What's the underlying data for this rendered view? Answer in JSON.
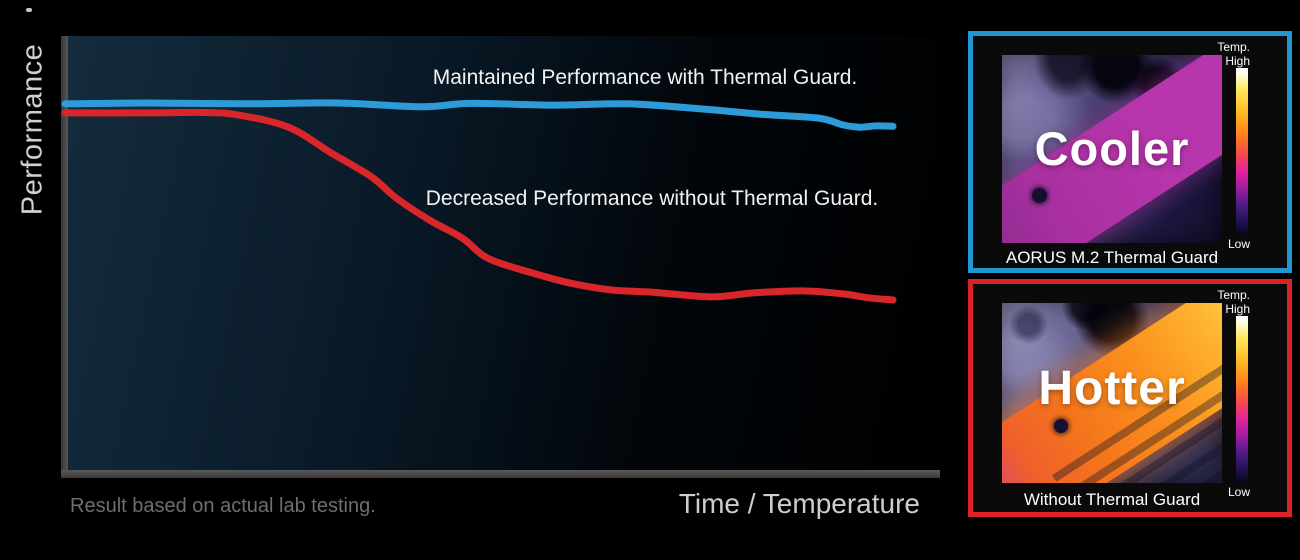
{
  "chart": {
    "ylabel": "Performance",
    "xlabel": "Time / Temperature",
    "footnote": "Result based on actual lab testing.",
    "maintained_label": "Maintained Performance with Thermal Guard.",
    "decreased_label": "Decreased Performance without Thermal Guard."
  },
  "chart_data": {
    "type": "line",
    "title": "",
    "xlabel": "Time / Temperature",
    "ylabel": "Performance",
    "x_axis": {
      "min": 0,
      "max": 100,
      "ticks": "none",
      "unit": "relative time / temperature (%)"
    },
    "y_axis": {
      "min": 0,
      "max": 100,
      "ticks": "none",
      "unit": "relative performance (%)"
    },
    "grid": false,
    "legend_position": "inline-annotations",
    "annotations": [
      "Maintained Performance with Thermal Guard.",
      "Decreased Performance without Thermal Guard."
    ],
    "footnote": "Result based on actual lab testing.",
    "series": [
      {
        "name": "Maintained Performance with Thermal Guard.",
        "color": "#2d9bd7",
        "x": [
          0,
          10,
          22,
          33,
          43,
          49,
          59,
          68,
          77,
          84,
          91,
          94,
          96,
          98,
          100
        ],
        "y": [
          84.3,
          84.5,
          84.3,
          84.5,
          83.6,
          84.4,
          84.0,
          84.3,
          83.1,
          81.9,
          81.0,
          79.4,
          78.9,
          79.2,
          79.1
        ]
      },
      {
        "name": "Decreased Performance without Thermal Guard.",
        "color": "#d8262b",
        "x": [
          0,
          10,
          17,
          21,
          27,
          32,
          37,
          40,
          44,
          48,
          51,
          56,
          61,
          66,
          71,
          78,
          83,
          89,
          94,
          97,
          100
        ],
        "y": [
          82.2,
          82.2,
          82.3,
          81.7,
          78.9,
          73.1,
          67.4,
          62.5,
          57.4,
          53.2,
          48.6,
          45.4,
          42.8,
          41.2,
          40.7,
          39.6,
          40.5,
          41.0,
          40.3,
          39.4,
          38.9
        ]
      }
    ]
  },
  "panels": {
    "cooler": {
      "title": "Cooler",
      "caption": "AORUS M.2 Thermal Guard",
      "border_color": "#1f97d3",
      "scale_temp": "Temp.",
      "scale_high": "High",
      "scale_low": "Low"
    },
    "hotter": {
      "title": "Hotter",
      "caption": "Without Thermal Guard",
      "border_color": "#dc2127",
      "scale_temp": "Temp.",
      "scale_high": "High",
      "scale_low": "Low"
    }
  },
  "colors": {
    "axis": "#4a4a4a",
    "annotation_text": "#f2f2f2",
    "footnote_text": "#6e6e6e",
    "xlabel_text": "#cdcdcd",
    "ylabel_text": "#d0d0d0",
    "background": "#000000"
  }
}
